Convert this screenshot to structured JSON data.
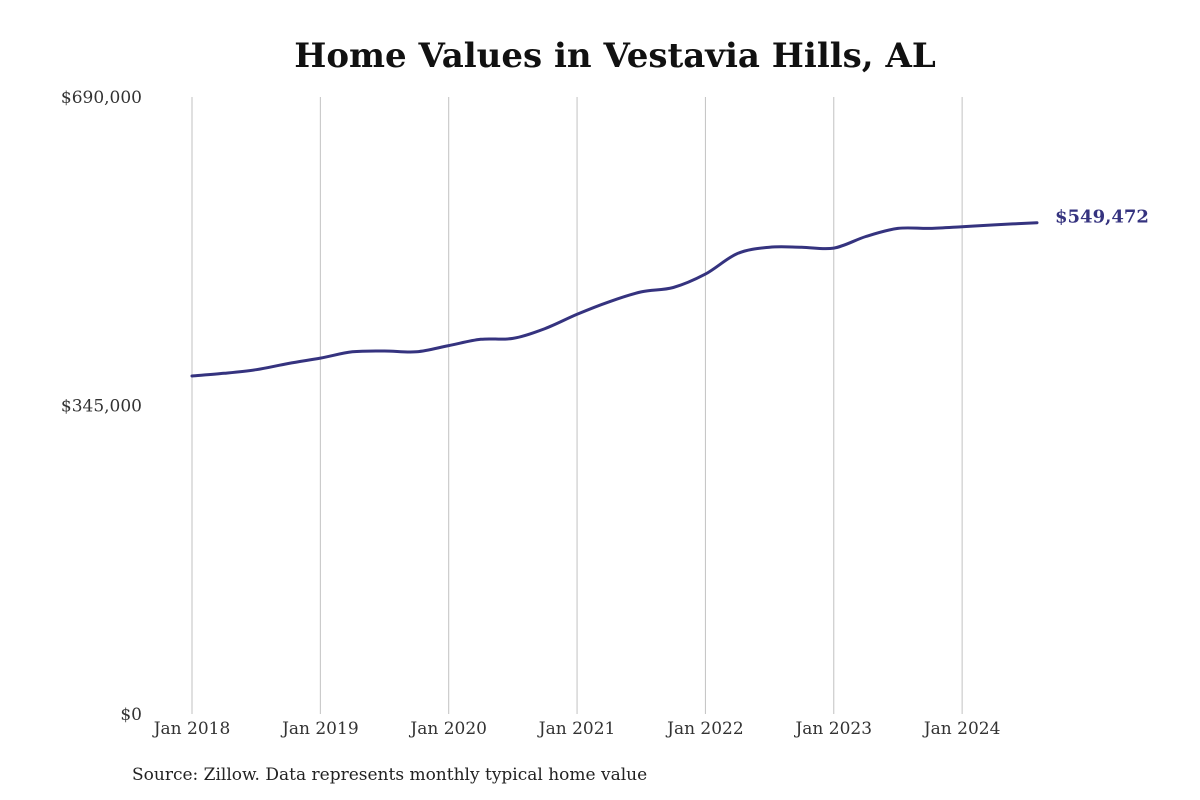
{
  "chart_data": {
    "type": "line",
    "title": "Home Values in Vestavia Hills, AL",
    "source": "Source: Zillow. Data represents monthly typical home value",
    "y_ticks": [
      {
        "value": 0,
        "label": "$0"
      },
      {
        "value": 345000,
        "label": "$345,000"
      },
      {
        "value": 690000,
        "label": "$690,000"
      }
    ],
    "ylim": [
      0,
      690000
    ],
    "x_ticks": [
      {
        "value": "2018-01",
        "label": "Jan 2018"
      },
      {
        "value": "2019-01",
        "label": "Jan 2019"
      },
      {
        "value": "2020-01",
        "label": "Jan 2020"
      },
      {
        "value": "2021-01",
        "label": "Jan 2021"
      },
      {
        "value": "2022-01",
        "label": "Jan 2022"
      },
      {
        "value": "2023-01",
        "label": "Jan 2023"
      },
      {
        "value": "2024-01",
        "label": "Jan 2024"
      }
    ],
    "xlim": [
      "2018-01",
      "2024-08"
    ],
    "grid": {
      "vertical": true,
      "horizontal": false
    },
    "line_color": "#35337f",
    "end_label": "$549,472",
    "series": [
      {
        "x": [
          "2018-01",
          "2018-04",
          "2018-07",
          "2018-10",
          "2019-01",
          "2019-04",
          "2019-07",
          "2019-10",
          "2020-01",
          "2020-04",
          "2020-07",
          "2020-10",
          "2021-01",
          "2021-04",
          "2021-07",
          "2021-10",
          "2022-01",
          "2022-04",
          "2022-07",
          "2022-10",
          "2023-01",
          "2023-04",
          "2023-07",
          "2023-10",
          "2024-01",
          "2024-04",
          "2024-08"
        ],
        "values": [
          378000,
          381000,
          385000,
          392000,
          398000,
          405000,
          406000,
          405000,
          412000,
          419000,
          420000,
          431000,
          447000,
          461000,
          472000,
          477000,
          492000,
          515000,
          522000,
          522000,
          521000,
          534000,
          543000,
          543000,
          545000,
          547000,
          549472
        ]
      }
    ]
  }
}
